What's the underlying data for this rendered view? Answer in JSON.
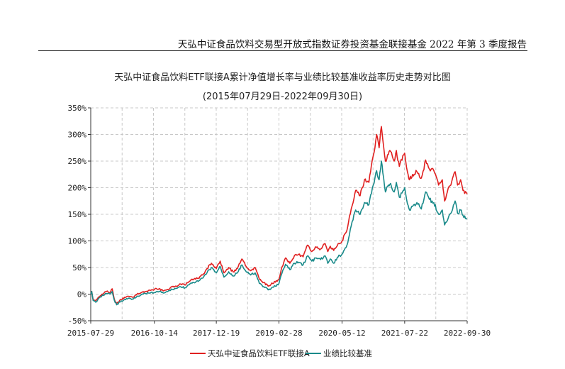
{
  "header": {
    "report_title": "天弘中证食品饮料交易型开放式指数证券投资基金联接基金 2022 年第 3 季度报告"
  },
  "chart_data": {
    "type": "line",
    "title": "天弘中证食品饮料ETF联接A累计净值增长率与业绩比较基准收益率历史走势对比图",
    "subtitle": "(2015年07月29日-2022年09月30日)",
    "x_tick_labels": [
      "2015-07-29",
      "2016-10-14",
      "2017-12-19",
      "2019-02-28",
      "2020-05-12",
      "2021-07-22",
      "2022-09-30"
    ],
    "y_tick_labels": [
      "350%",
      "300%",
      "250%",
      "200%",
      "150%",
      "100%",
      "50%",
      "0%",
      "-50%"
    ],
    "ylim": [
      -50,
      350
    ],
    "y_ticks": [
      350,
      300,
      250,
      200,
      150,
      100,
      50,
      0,
      -50
    ],
    "grid": true,
    "legend_position": "bottom-center",
    "series": [
      {
        "name": "天弘中证食品饮料ETF联接A",
        "color": "#e02020",
        "points": [
          [
            "2015-07-29",
            0
          ],
          [
            "2015-08-05",
            5
          ],
          [
            "2015-08-15",
            -10
          ],
          [
            "2015-09-01",
            -12
          ],
          [
            "2015-09-15",
            -8
          ],
          [
            "2015-10-15",
            0
          ],
          [
            "2015-11-15",
            5
          ],
          [
            "2015-12-10",
            3
          ],
          [
            "2015-12-25",
            10
          ],
          [
            "2016-01-10",
            -10
          ],
          [
            "2016-01-25",
            -18
          ],
          [
            "2016-02-15",
            -12
          ],
          [
            "2016-03-15",
            -8
          ],
          [
            "2016-04-15",
            -4
          ],
          [
            "2016-05-15",
            -6
          ],
          [
            "2016-06-15",
            0
          ],
          [
            "2016-07-15",
            3
          ],
          [
            "2016-08-15",
            5
          ],
          [
            "2016-09-15",
            7
          ],
          [
            "2016-10-14",
            9
          ],
          [
            "2016-11-15",
            10
          ],
          [
            "2016-12-15",
            6
          ],
          [
            "2017-01-15",
            9
          ],
          [
            "2017-02-15",
            14
          ],
          [
            "2017-03-15",
            15
          ],
          [
            "2017-04-15",
            19
          ],
          [
            "2017-05-15",
            17
          ],
          [
            "2017-06-15",
            24
          ],
          [
            "2017-07-15",
            28
          ],
          [
            "2017-08-15",
            30
          ],
          [
            "2017-09-15",
            36
          ],
          [
            "2017-10-15",
            48
          ],
          [
            "2017-11-15",
            58
          ],
          [
            "2017-12-19",
            48
          ],
          [
            "2018-01-15",
            62
          ],
          [
            "2018-02-10",
            40
          ],
          [
            "2018-03-15",
            50
          ],
          [
            "2018-04-15",
            42
          ],
          [
            "2018-05-15",
            48
          ],
          [
            "2018-06-15",
            66
          ],
          [
            "2018-07-15",
            52
          ],
          [
            "2018-08-15",
            44
          ],
          [
            "2018-09-15",
            50
          ],
          [
            "2018-10-15",
            28
          ],
          [
            "2018-11-15",
            22
          ],
          [
            "2018-12-15",
            15
          ],
          [
            "2019-01-03",
            18
          ],
          [
            "2019-02-28",
            28
          ],
          [
            "2019-03-15",
            45
          ],
          [
            "2019-04-15",
            68
          ],
          [
            "2019-05-15",
            58
          ],
          [
            "2019-06-15",
            72
          ],
          [
            "2019-07-15",
            75
          ],
          [
            "2019-08-15",
            70
          ],
          [
            "2019-09-15",
            92
          ],
          [
            "2019-10-15",
            80
          ],
          [
            "2019-11-15",
            88
          ],
          [
            "2019-12-15",
            85
          ],
          [
            "2020-01-15",
            95
          ],
          [
            "2020-02-03",
            80
          ],
          [
            "2020-02-20",
            90
          ],
          [
            "2020-03-15",
            82
          ],
          [
            "2020-04-15",
            95
          ],
          [
            "2020-05-12",
            100
          ],
          [
            "2020-06-15",
            120
          ],
          [
            "2020-07-15",
            160
          ],
          [
            "2020-08-15",
            195
          ],
          [
            "2020-09-15",
            185
          ],
          [
            "2020-10-15",
            215
          ],
          [
            "2020-11-15",
            210
          ],
          [
            "2020-12-15",
            260
          ],
          [
            "2021-01-08",
            300
          ],
          [
            "2021-01-25",
            275
          ],
          [
            "2021-02-10",
            315
          ],
          [
            "2021-02-20",
            290
          ],
          [
            "2021-03-10",
            250
          ],
          [
            "2021-03-25",
            262
          ],
          [
            "2021-04-15",
            268
          ],
          [
            "2021-05-10",
            250
          ],
          [
            "2021-05-25",
            270
          ],
          [
            "2021-06-15",
            240
          ],
          [
            "2021-07-22",
            265
          ],
          [
            "2021-08-10",
            230
          ],
          [
            "2021-08-25",
            215
          ],
          [
            "2021-09-15",
            225
          ],
          [
            "2021-10-15",
            230
          ],
          [
            "2021-11-15",
            218
          ],
          [
            "2021-12-15",
            252
          ],
          [
            "2022-01-10",
            235
          ],
          [
            "2022-02-10",
            232
          ],
          [
            "2022-03-15",
            205
          ],
          [
            "2022-04-10",
            215
          ],
          [
            "2022-04-26",
            175
          ],
          [
            "2022-05-15",
            192
          ],
          [
            "2022-06-15",
            212
          ],
          [
            "2022-07-08",
            230
          ],
          [
            "2022-07-25",
            205
          ],
          [
            "2022-08-15",
            215
          ],
          [
            "2022-09-01",
            195
          ],
          [
            "2022-09-30",
            188
          ]
        ]
      },
      {
        "name": "业绩比较基准",
        "color": "#1a8a8a",
        "points": [
          [
            "2015-07-29",
            0
          ],
          [
            "2015-08-05",
            5
          ],
          [
            "2015-08-15",
            -12
          ],
          [
            "2015-09-01",
            -15
          ],
          [
            "2015-09-15",
            -11
          ],
          [
            "2015-10-15",
            -3
          ],
          [
            "2015-11-15",
            1
          ],
          [
            "2015-12-10",
            0
          ],
          [
            "2015-12-25",
            5
          ],
          [
            "2016-01-10",
            -12
          ],
          [
            "2016-01-25",
            -20
          ],
          [
            "2016-02-15",
            -15
          ],
          [
            "2016-03-15",
            -11
          ],
          [
            "2016-04-15",
            -8
          ],
          [
            "2016-05-15",
            -9
          ],
          [
            "2016-06-15",
            -4
          ],
          [
            "2016-07-15",
            -1
          ],
          [
            "2016-08-15",
            1
          ],
          [
            "2016-09-15",
            2
          ],
          [
            "2016-10-14",
            3
          ],
          [
            "2016-11-15",
            5
          ],
          [
            "2016-12-15",
            2
          ],
          [
            "2017-01-15",
            5
          ],
          [
            "2017-02-15",
            9
          ],
          [
            "2017-03-15",
            11
          ],
          [
            "2017-04-15",
            14
          ],
          [
            "2017-05-15",
            12
          ],
          [
            "2017-06-15",
            18
          ],
          [
            "2017-07-15",
            22
          ],
          [
            "2017-08-15",
            24
          ],
          [
            "2017-09-15",
            30
          ],
          [
            "2017-10-15",
            40
          ],
          [
            "2017-11-15",
            50
          ],
          [
            "2017-12-19",
            40
          ],
          [
            "2018-01-15",
            52
          ],
          [
            "2018-02-10",
            32
          ],
          [
            "2018-03-15",
            42
          ],
          [
            "2018-04-15",
            34
          ],
          [
            "2018-05-15",
            40
          ],
          [
            "2018-06-15",
            55
          ],
          [
            "2018-07-15",
            42
          ],
          [
            "2018-08-15",
            36
          ],
          [
            "2018-09-15",
            40
          ],
          [
            "2018-10-15",
            20
          ],
          [
            "2018-11-15",
            14
          ],
          [
            "2018-12-15",
            8
          ],
          [
            "2019-01-03",
            10
          ],
          [
            "2019-02-28",
            20
          ],
          [
            "2019-03-15",
            35
          ],
          [
            "2019-04-15",
            56
          ],
          [
            "2019-05-15",
            46
          ],
          [
            "2019-06-15",
            58
          ],
          [
            "2019-07-15",
            60
          ],
          [
            "2019-08-15",
            55
          ],
          [
            "2019-09-15",
            72
          ],
          [
            "2019-10-15",
            62
          ],
          [
            "2019-11-15",
            68
          ],
          [
            "2019-12-15",
            65
          ],
          [
            "2020-01-15",
            72
          ],
          [
            "2020-02-03",
            58
          ],
          [
            "2020-02-20",
            66
          ],
          [
            "2020-03-15",
            58
          ],
          [
            "2020-04-15",
            70
          ],
          [
            "2020-05-12",
            75
          ],
          [
            "2020-06-15",
            92
          ],
          [
            "2020-07-15",
            128
          ],
          [
            "2020-08-15",
            158
          ],
          [
            "2020-09-15",
            150
          ],
          [
            "2020-10-15",
            172
          ],
          [
            "2020-11-15",
            168
          ],
          [
            "2020-12-15",
            205
          ],
          [
            "2021-01-08",
            232
          ],
          [
            "2021-01-25",
            215
          ],
          [
            "2021-02-10",
            250
          ],
          [
            "2021-02-20",
            228
          ],
          [
            "2021-03-10",
            192
          ],
          [
            "2021-03-25",
            202
          ],
          [
            "2021-04-15",
            208
          ],
          [
            "2021-05-10",
            192
          ],
          [
            "2021-05-25",
            210
          ],
          [
            "2021-06-15",
            182
          ],
          [
            "2021-07-22",
            200
          ],
          [
            "2021-08-10",
            170
          ],
          [
            "2021-08-25",
            158
          ],
          [
            "2021-09-15",
            165
          ],
          [
            "2021-10-15",
            172
          ],
          [
            "2021-11-15",
            160
          ],
          [
            "2021-12-15",
            192
          ],
          [
            "2022-01-10",
            178
          ],
          [
            "2022-02-10",
            172
          ],
          [
            "2022-03-15",
            150
          ],
          [
            "2022-04-10",
            158
          ],
          [
            "2022-04-26",
            130
          ],
          [
            "2022-05-15",
            138
          ],
          [
            "2022-06-15",
            155
          ],
          [
            "2022-07-08",
            175
          ],
          [
            "2022-07-25",
            152
          ],
          [
            "2022-08-15",
            158
          ],
          [
            "2022-09-01",
            148
          ],
          [
            "2022-09-30",
            142
          ]
        ]
      }
    ]
  }
}
